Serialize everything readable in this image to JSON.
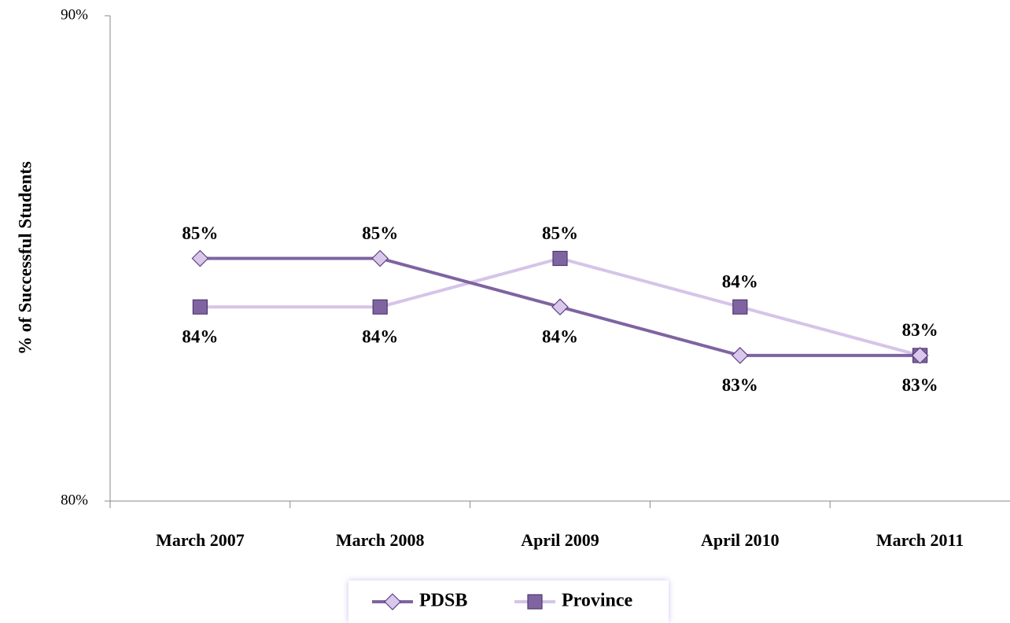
{
  "chart_data": {
    "type": "line",
    "ylabel": "% of Successful Students",
    "categories": [
      "March 2007",
      "March 2008",
      "April 2009",
      "April 2010",
      "March 2011"
    ],
    "series": [
      {
        "name": "PDSB",
        "color": "#7f63a1",
        "marker": "diamond",
        "marker_color": "#d9c8ec",
        "values": [
          85,
          85,
          84,
          83,
          83
        ],
        "value_labels": [
          "85%",
          "85%",
          "84%",
          "83%",
          "83%"
        ]
      },
      {
        "name": "Province",
        "color": "#d6c4e8",
        "marker": "square",
        "marker_color": "#8064a2",
        "values": [
          84,
          84,
          85,
          84,
          83
        ],
        "value_labels": [
          "84%",
          "84%",
          "85%",
          "84%",
          "83%"
        ]
      }
    ],
    "ylim": [
      80,
      90
    ],
    "yticks": [
      {
        "value": 80,
        "label": "80%"
      },
      {
        "value": 90,
        "label": "90%"
      }
    ],
    "legend": "bottom"
  }
}
